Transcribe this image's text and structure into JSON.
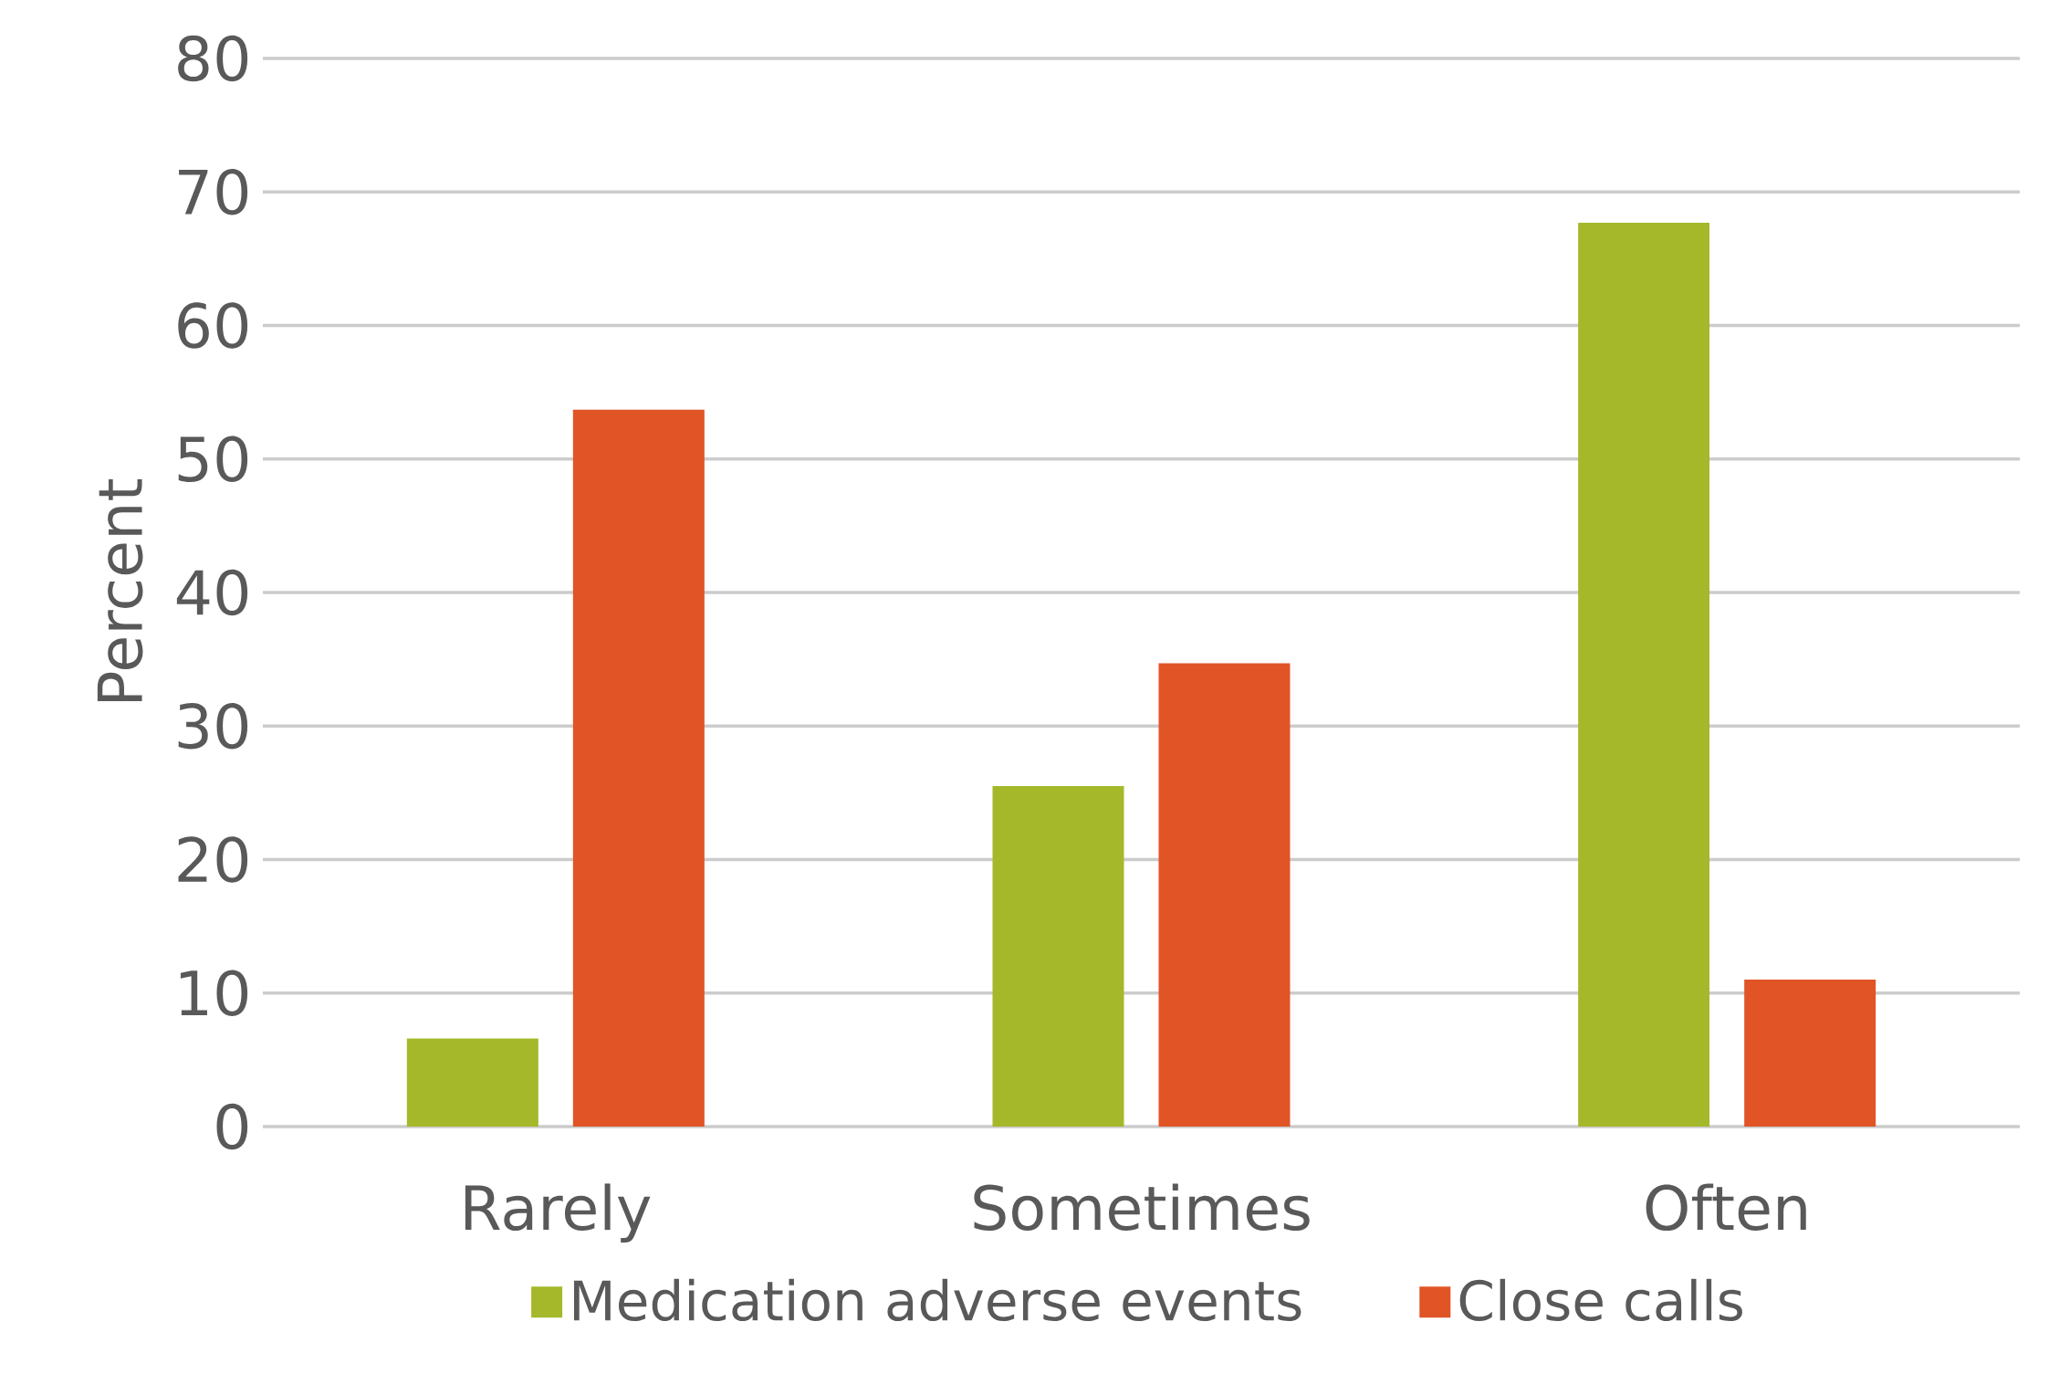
{
  "chart_data": {
    "type": "bar",
    "ylabel": "Percent",
    "categories": [
      "Rarely",
      "Sometimes",
      "Often"
    ],
    "series": [
      {
        "name": "Medication adverse events",
        "color": "#a5b82a",
        "values": [
          6.6,
          25.5,
          67.7
        ]
      },
      {
        "name": "Close calls",
        "color": "#e05426",
        "values": [
          53.7,
          34.7,
          11
        ]
      }
    ],
    "ylim": [
      0,
      80
    ],
    "yticks": [
      0,
      10,
      20,
      30,
      40,
      50,
      60,
      70,
      80
    ],
    "grid": "y",
    "legend": "bottom"
  }
}
